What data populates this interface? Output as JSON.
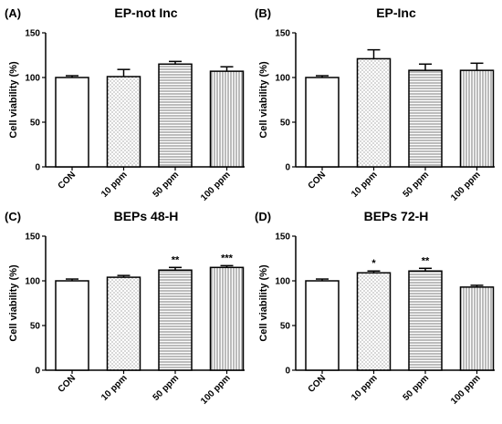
{
  "chart_data": [
    {
      "type": "bar",
      "panel_label": "(A)",
      "title": "EP-not Inc",
      "ylabel": "Cell viability (%)",
      "ylim": [
        0,
        150
      ],
      "yticks": [
        "0",
        "50",
        "100",
        "150"
      ],
      "categories": [
        "CON",
        "10 ppm",
        "50 ppm",
        "100 ppm"
      ],
      "values": [
        100,
        101,
        115,
        107
      ],
      "errors": [
        2,
        8,
        3,
        5
      ],
      "patterns": [
        "none",
        "dots",
        "hlines",
        "vlines"
      ],
      "significance": [
        "",
        "",
        "",
        ""
      ]
    },
    {
      "type": "bar",
      "panel_label": "(B)",
      "title": "EP-Inc",
      "ylabel": "Cell viability (%)",
      "ylim": [
        0,
        150
      ],
      "yticks": [
        "0",
        "50",
        "100",
        "150"
      ],
      "categories": [
        "CON",
        "10 ppm",
        "50 ppm",
        "100 ppm"
      ],
      "values": [
        100,
        121,
        108,
        108
      ],
      "errors": [
        2,
        10,
        7,
        8
      ],
      "patterns": [
        "none",
        "dots",
        "hlines",
        "vlines"
      ],
      "significance": [
        "",
        "",
        "",
        ""
      ]
    },
    {
      "type": "bar",
      "panel_label": "(C)",
      "title": "BEPs 48-H",
      "ylabel": "Cell viability (%)",
      "ylim": [
        0,
        150
      ],
      "yticks": [
        "0",
        "50",
        "100",
        "150"
      ],
      "categories": [
        "CON",
        "10 ppm",
        "50 ppm",
        "100 ppm"
      ],
      "values": [
        100,
        104,
        112,
        115
      ],
      "errors": [
        2,
        2,
        3,
        2
      ],
      "patterns": [
        "none",
        "dots",
        "hlines",
        "vlines"
      ],
      "significance": [
        "",
        "",
        "**",
        "***"
      ]
    },
    {
      "type": "bar",
      "panel_label": "(D)",
      "title": "BEPs 72-H",
      "ylabel": "Cell viability (%)",
      "ylim": [
        0,
        150
      ],
      "yticks": [
        "0",
        "50",
        "100",
        "150"
      ],
      "categories": [
        "CON",
        "10 ppm",
        "50 ppm",
        "100 ppm"
      ],
      "values": [
        100,
        109,
        111,
        93
      ],
      "errors": [
        2,
        2,
        3,
        2
      ],
      "patterns": [
        "none",
        "dots",
        "hlines",
        "vlines"
      ],
      "significance": [
        "",
        "*",
        "**",
        ""
      ]
    }
  ]
}
